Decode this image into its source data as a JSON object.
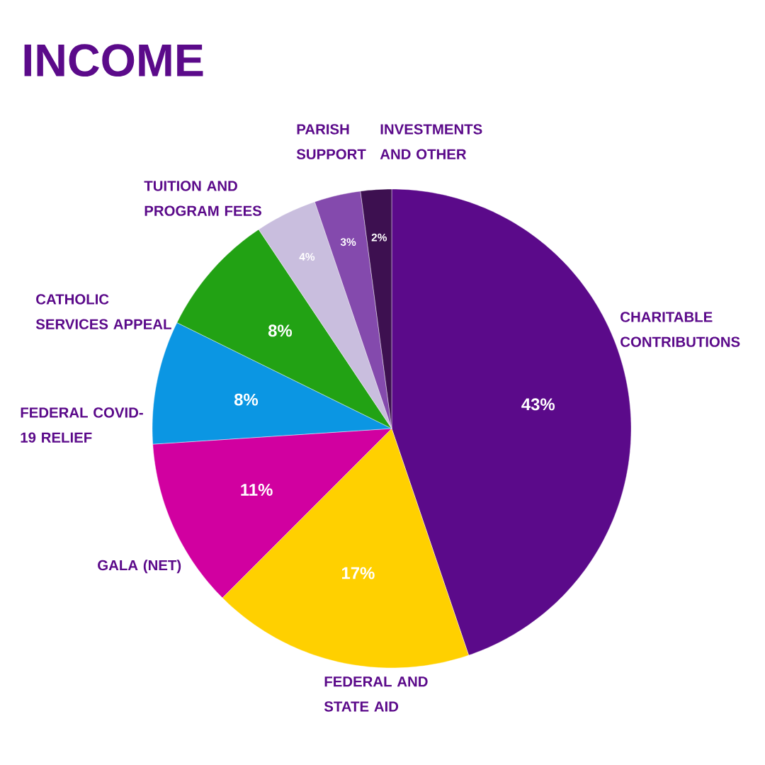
{
  "chart_data": {
    "type": "pie",
    "title": "INCOME",
    "categories": [
      "CHARITABLE CONTRIBUTIONS",
      "FEDERAL AND STATE AID",
      "GALA (NET)",
      "FEDERAL COVID-19 RELIEF",
      "CATHOLIC SERVICES APPEAL",
      "TUITION AND PROGRAM FEES",
      "PARISH SUPPORT",
      "INVESTMENTS AND OTHER"
    ],
    "values": [
      43,
      17,
      11,
      8,
      8,
      4,
      3,
      2
    ],
    "value_labels": [
      "43%",
      "17%",
      "11%",
      "8%",
      "8%",
      "4%",
      "3%",
      "2%"
    ],
    "colors": [
      "#5b0a8a",
      "#ffd000",
      "#d100a0",
      "#0b96e3",
      "#22a214",
      "#c9bede",
      "#844aad",
      "#3d1050"
    ]
  }
}
